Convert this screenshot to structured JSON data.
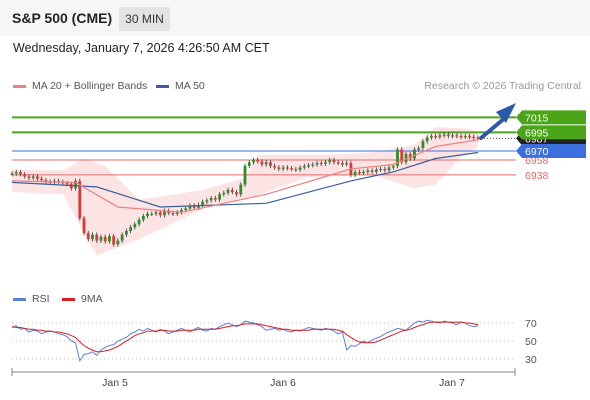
{
  "header": {
    "title": "S&P 500 (CME)",
    "interval": "30 MIN",
    "datetime": "Wednesday, January 7, 2026 4:26:50 AM CET"
  },
  "legend": {
    "ma20_label": "MA 20 + Bollinger Bands",
    "ma50_label": "MA 50",
    "credit": "Research © 2026 Trading Central",
    "rsi_label": "RSI",
    "rsi_ma_label": "9MA"
  },
  "colors": {
    "up": "#2e8b2e",
    "down": "#d63b3b",
    "ma20": "#f08080",
    "ma50": "#3b5f9c",
    "bollinger_fill": "#fde1e1",
    "resistance": "#4aa518",
    "support": "#e36b6b",
    "pivot": "#3b6fe0",
    "rsi": "#5c7fd8",
    "rsi_ma": "#d62020",
    "arrow": "#2c5aa8"
  },
  "chart_data": [
    {
      "type": "candlestick",
      "x_ticks": [
        "Jan 5",
        "Jan 6",
        "Jan 7"
      ],
      "ylim": [
        6800,
        7045
      ],
      "price_levels": [
        {
          "value": 7015,
          "label": "7015",
          "kind": "resistance"
        },
        {
          "value": 6995,
          "label": "6995",
          "kind": "resistance"
        },
        {
          "value": 6987,
          "label": "6987",
          "kind": "last"
        },
        {
          "value": 6970,
          "label": "6970",
          "kind": "pivot"
        },
        {
          "value": 6958,
          "label": "6958",
          "kind": "support"
        },
        {
          "value": 6938,
          "label": "6938",
          "kind": "support"
        }
      ],
      "close_series": [
        6940,
        6942,
        6939,
        6936,
        6934,
        6936,
        6933,
        6931,
        6929,
        6928,
        6930,
        6929,
        6927,
        6926,
        6920,
        6930,
        6880,
        6860,
        6852,
        6858,
        6850,
        6855,
        6849,
        6856,
        6845,
        6850,
        6858,
        6863,
        6868,
        6872,
        6878,
        6883,
        6886,
        6886,
        6888,
        6884,
        6890,
        6887,
        6886,
        6888,
        6891,
        6893,
        6897,
        6894,
        6898,
        6902,
        6904,
        6907,
        6905,
        6912,
        6914,
        6918,
        6915,
        6912,
        6925,
        6950,
        6955,
        6958,
        6956,
        6952,
        6955,
        6950,
        6948,
        6946,
        6948,
        6947,
        6946,
        6945,
        6948,
        6950,
        6951,
        6952,
        6954,
        6953,
        6955,
        6958,
        6955,
        6954,
        6952,
        6954,
        6938,
        6942,
        6941,
        6942,
        6944,
        6942,
        6945,
        6946,
        6944,
        6948,
        6950,
        6972,
        6955,
        6966,
        6960,
        6972,
        6974,
        6983,
        6988,
        6990,
        6989,
        6991,
        6992,
        6990,
        6991,
        6990,
        6989,
        6990,
        6989,
        6988,
        6987
      ],
      "ma20": [
        [
          0,
          6930
        ],
        [
          15,
          6928
        ],
        [
          25,
          6895
        ],
        [
          40,
          6888
        ],
        [
          60,
          6912
        ],
        [
          80,
          6946
        ],
        [
          90,
          6952
        ],
        [
          100,
          6976
        ],
        [
          110,
          6985
        ]
      ],
      "ma50": [
        [
          0,
          6928
        ],
        [
          20,
          6922
        ],
        [
          35,
          6895
        ],
        [
          60,
          6900
        ],
        [
          80,
          6930
        ],
        [
          90,
          6942
        ],
        [
          100,
          6960
        ],
        [
          110,
          6968
        ]
      ],
      "bollinger_upper": [
        [
          0,
          6945
        ],
        [
          12,
          6944
        ],
        [
          17,
          6960
        ],
        [
          22,
          6950
        ],
        [
          30,
          6905
        ],
        [
          45,
          6918
        ],
        [
          55,
          6934
        ],
        [
          58,
          6965
        ],
        [
          75,
          6965
        ],
        [
          85,
          6968
        ],
        [
          95,
          6978
        ],
        [
          100,
          7002
        ],
        [
          108,
          7000
        ],
        [
          110,
          6995
        ]
      ],
      "bollinger_lower": [
        [
          0,
          6915
        ],
        [
          12,
          6912
        ],
        [
          20,
          6830
        ],
        [
          30,
          6852
        ],
        [
          45,
          6892
        ],
        [
          55,
          6905
        ],
        [
          70,
          6935
        ],
        [
          85,
          6938
        ],
        [
          95,
          6920
        ],
        [
          100,
          6925
        ],
        [
          106,
          6962
        ],
        [
          110,
          6975
        ]
      ]
    },
    {
      "type": "line",
      "ylim": [
        20,
        80
      ],
      "y_ticks": [
        70,
        50,
        30
      ],
      "series": [
        {
          "name": "RSI",
          "values": [
            65,
            67,
            63,
            64,
            60,
            62,
            61,
            58,
            60,
            61,
            60,
            58,
            57,
            55,
            50,
            48,
            28,
            35,
            36,
            38,
            34,
            40,
            43,
            45,
            46,
            50,
            52,
            54,
            58,
            60,
            63,
            61,
            64,
            62,
            60,
            63,
            61,
            58,
            60,
            62,
            64,
            62,
            60,
            63,
            65,
            62,
            61,
            64,
            63,
            66,
            68,
            70,
            68,
            66,
            68,
            72,
            71,
            70,
            68,
            66,
            62,
            63,
            64,
            62,
            63,
            61,
            60,
            62,
            61,
            63,
            65,
            64,
            63,
            62,
            64,
            63,
            61,
            58,
            60,
            40,
            45,
            44,
            47,
            50,
            48,
            51,
            53,
            55,
            58,
            60,
            62,
            64,
            63,
            62,
            66,
            70,
            72,
            71,
            73,
            72,
            71,
            70,
            72,
            71,
            70,
            68,
            71,
            70,
            67,
            66,
            67
          ]
        },
        {
          "name": "9MA",
          "values": [
            66,
            65,
            65,
            64,
            63,
            63,
            62,
            62,
            61,
            61,
            60,
            60,
            59,
            58,
            56,
            54,
            49,
            45,
            42,
            40,
            38,
            38,
            39,
            40,
            42,
            44,
            47,
            50,
            53,
            56,
            58,
            59,
            61,
            61,
            61,
            62,
            62,
            61,
            61,
            61,
            62,
            62,
            62,
            62,
            63,
            63,
            63,
            63,
            63,
            64,
            65,
            66,
            67,
            67,
            68,
            69,
            69,
            69,
            69,
            68,
            67,
            66,
            65,
            64,
            63,
            63,
            62,
            62,
            62,
            62,
            62,
            63,
            63,
            63,
            63,
            63,
            63,
            62,
            61,
            57,
            54,
            51,
            49,
            48,
            48,
            48,
            49,
            51,
            53,
            55,
            57,
            59,
            61,
            62,
            63,
            65,
            67,
            68,
            70,
            71,
            71,
            71,
            71,
            71,
            71,
            71,
            71,
            70,
            70,
            69,
            68
          ]
        }
      ]
    }
  ]
}
